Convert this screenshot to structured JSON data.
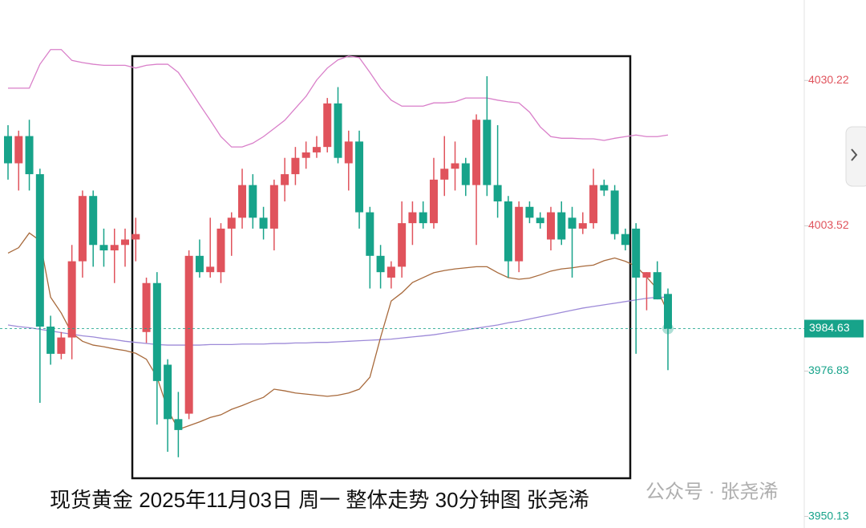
{
  "chart_data": {
    "type": "candlestick",
    "caption": "现货黄金 2025年11月03日 周一  整体走势 30分钟图 张尧浠",
    "watermark": "公众号 · 张尧浠",
    "ylim": [
      3948,
      4045
    ],
    "yticks": [
      3950.13,
      3976.83,
      4003.52,
      4030.22
    ],
    "last_price": 3984.63,
    "up_color": "#e0535c",
    "down_color": "#17a38a",
    "open": [
      4020,
      4015,
      4020,
      4013,
      3985,
      3980,
      3983,
      3997,
      4009,
      4000,
      3999,
      4000,
      4001,
      3984,
      3993,
      3978,
      3968,
      3969,
      3998,
      3995,
      3995,
      4003,
      4005,
      4011,
      4005,
      4003,
      4011,
      4013,
      4016,
      4017,
      4018,
      4026,
      4015,
      4019,
      4006,
      3998,
      3994,
      3996,
      4004,
      4006,
      4004,
      4012,
      4014,
      4015,
      4011,
      4023,
      4011,
      4008,
      3997,
      4007,
      4005,
      4001,
      4006,
      4005,
      4003,
      4004,
      4011,
      4010,
      4002,
      4003,
      3994,
      3995,
      3991
    ],
    "high": [
      4022,
      4021,
      4023,
      4014,
      3987,
      3984,
      4000,
      4010,
      4010,
      4003,
      4003,
      4003,
      4005,
      3994,
      3995,
      3979,
      3973,
      3999,
      4001,
      4005,
      4004,
      4006,
      4014,
      4013,
      4007,
      4012,
      4016,
      4018,
      4019,
      4020,
      4027,
      4029,
      4021,
      4021,
      4007,
      4000,
      3997,
      4008,
      4008,
      4008,
      4016,
      4020,
      4019,
      4016,
      4024,
      4031,
      4022,
      4009,
      4008,
      4008,
      4006,
      4007,
      4008,
      4007,
      4006,
      4014,
      4012,
      4011,
      4003,
      4004,
      3995,
      3997,
      3992
    ],
    "low": [
      4012,
      4010,
      4010,
      3971,
      3978,
      3979,
      3979,
      3994,
      3996,
      3996,
      3993,
      3996,
      3997,
      3982,
      3967,
      3962,
      3961,
      3968,
      3994,
      3994,
      3993,
      3998,
      4003,
      4003,
      4001,
      3999,
      4008,
      4011,
      4014,
      4016,
      4017,
      4015,
      4010,
      4003,
      3992,
      3992,
      3992,
      3994,
      4000,
      4003,
      4003,
      4009,
      4010,
      4009,
      4000,
      4009,
      4005,
      3994,
      3995,
      4004,
      4003,
      3999,
      4000,
      3994,
      4002,
      4003,
      4009,
      4001,
      3999,
      3980,
      3988,
      3990,
      3977
    ],
    "close": [
      4015,
      4020,
      4013,
      3985,
      3980,
      3983,
      3997,
      4009,
      4000,
      3999,
      4000,
      4001,
      4002,
      3993,
      3975,
      3968,
      3966,
      3998,
      3995,
      3996,
      4003,
      4005,
      4011,
      4005,
      4003,
      4011,
      4013,
      4016,
      4017,
      4018,
      4026,
      4016,
      4019,
      4006,
      3998,
      3995,
      3996,
      4004,
      4006,
      4004,
      4012,
      4014,
      4015,
      4011,
      4023,
      4011,
      4008,
      3997,
      4007,
      4005,
      4004,
      4006,
      4001,
      4003,
      4004,
      4011,
      4010,
      4002,
      4000,
      3994,
      3995,
      3990,
      3984.63
    ],
    "overlays": [
      {
        "color": "#d97fc9",
        "values": [
          4028.8,
          4028.8,
          4028.8,
          4033.2,
          4035.9,
          4035.9,
          4033.9,
          4033.5,
          4033.2,
          4033.0,
          4033.0,
          4033.0,
          4032.5,
          4033.0,
          4033.2,
          4033.2,
          4031.7,
          4028.8,
          4025.8,
          4022.9,
          4019.9,
          4018.0,
          4018.0,
          4018.7,
          4019.9,
          4021.4,
          4022.9,
          4025.1,
          4027.3,
          4030.3,
          4032.5,
          4034.0,
          4034.7,
          4034.4,
          4031.7,
          4028.8,
          4026.6,
          4025.5,
          4025.5,
          4025.5,
          4026.1,
          4026.1,
          4026.3,
          4027.0,
          4027.0,
          4027.0,
          4026.6,
          4026.3,
          4026.1,
          4024.4,
          4021.7,
          4019.9,
          4019.6,
          4019.6,
          4019.5,
          4019.5,
          4019.2,
          4019.6,
          4019.9,
          4020.2,
          4019.9,
          4019.9,
          4020.2
        ]
      },
      {
        "color": "#9d8ad8",
        "values": [
          3985.3,
          3985.0,
          3984.8,
          3984.5,
          3984.2,
          3983.9,
          3983.6,
          3983.3,
          3983.1,
          3982.8,
          3982.6,
          3982.3,
          3982.1,
          3981.9,
          3981.7,
          3981.6,
          3981.6,
          3981.6,
          3981.6,
          3981.7,
          3981.7,
          3981.7,
          3981.8,
          3981.8,
          3981.8,
          3981.9,
          3981.9,
          3982.0,
          3982.0,
          3982.1,
          3982.1,
          3982.2,
          3982.3,
          3982.4,
          3982.5,
          3982.6,
          3982.7,
          3982.9,
          3983.1,
          3983.3,
          3983.5,
          3983.8,
          3984.1,
          3984.4,
          3984.7,
          3985.0,
          3985.3,
          3985.7,
          3986.0,
          3986.4,
          3986.8,
          3987.2,
          3987.6,
          3988.0,
          3988.4,
          3988.7,
          3989.0,
          3989.3,
          3989.6,
          3989.9,
          3990.2,
          3990.4,
          3990.4
        ]
      },
      {
        "color": "#a86a3c",
        "values": [
          3998.5,
          3999.5,
          4002.2,
          4000.8,
          3990.4,
          3987.5,
          3983.8,
          3982.3,
          3981.6,
          3981.3,
          3980.9,
          3980.6,
          3980.1,
          3979.0,
          3975.7,
          3969.8,
          3966.1,
          3966.8,
          3967.5,
          3968.3,
          3968.8,
          3969.8,
          3970.5,
          3971.3,
          3972.0,
          3973.5,
          3973.2,
          3972.8,
          3972.6,
          3972.4,
          3972.2,
          3972.4,
          3972.8,
          3973.5,
          3975.7,
          3983.0,
          3989.7,
          3991.2,
          3993.1,
          3994.0,
          3994.9,
          3995.3,
          3995.6,
          3995.8,
          3996.0,
          3996.0,
          3994.9,
          3994.0,
          3993.7,
          3993.9,
          3994.5,
          3995.2,
          3995.6,
          3995.8,
          3996.1,
          3996.3,
          3997.1,
          3997.6,
          3997.0,
          3996.1,
          3994.1,
          3991.9,
          3987.5
        ]
      }
    ]
  }
}
